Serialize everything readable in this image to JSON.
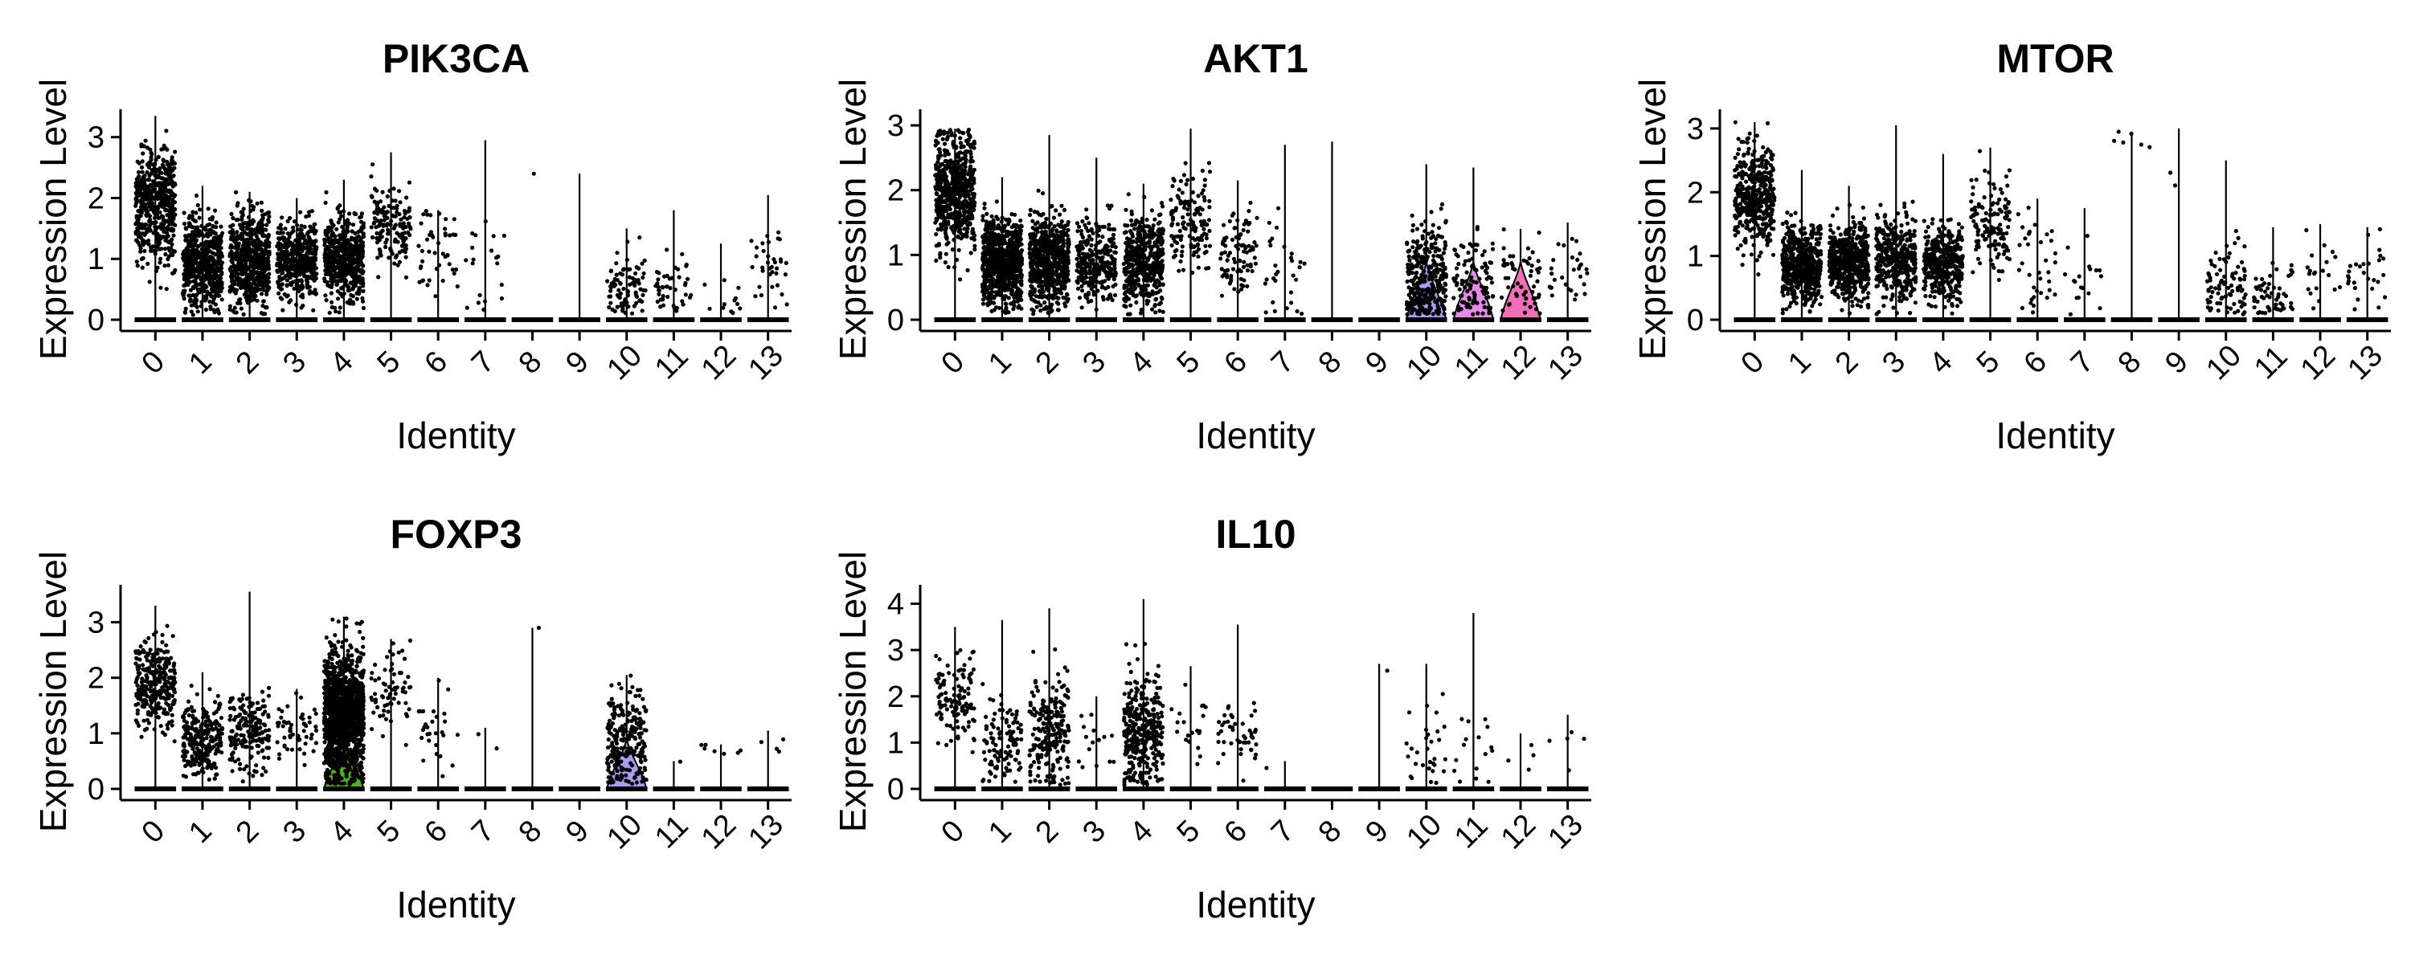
{
  "chart_data": [
    {
      "type": "violin",
      "title": "PIK3CA",
      "xlabel": "Identity",
      "ylabel": "Expression Level",
      "categories": [
        "0",
        "1",
        "2",
        "3",
        "4",
        "5",
        "6",
        "7",
        "8",
        "9",
        "10",
        "11",
        "12",
        "13"
      ],
      "ylim": [
        0,
        3.3
      ],
      "yticks": [
        0,
        1,
        2,
        3
      ],
      "legend": "none",
      "series": [
        {
          "center": 1.9,
          "spread": 0.45,
          "n": 520,
          "max": 3.35,
          "violin_fill": ""
        },
        {
          "center": 0.9,
          "spread": 0.35,
          "n": 560,
          "max": 2.2,
          "violin_fill": ""
        },
        {
          "center": 1.0,
          "spread": 0.4,
          "n": 600,
          "max": 2.1,
          "violin_fill": ""
        },
        {
          "center": 1.0,
          "spread": 0.3,
          "n": 420,
          "max": 2.0,
          "violin_fill": ""
        },
        {
          "center": 1.0,
          "spread": 0.35,
          "n": 520,
          "max": 2.3,
          "violin_fill": ""
        },
        {
          "center": 1.5,
          "spread": 0.35,
          "n": 150,
          "max": 2.75,
          "violin_fill": ""
        },
        {
          "center": 1.1,
          "spread": 0.35,
          "n": 45,
          "max": 1.8,
          "violin_fill": ""
        },
        {
          "center": 0.8,
          "spread": 0.5,
          "n": 20,
          "max": 2.95,
          "violin_fill": ""
        },
        {
          "center": 2.4,
          "spread": 0.0,
          "n": 1,
          "max": 0.0,
          "violin_fill": ""
        },
        {
          "center": 0.0,
          "spread": 0.0,
          "n": 0,
          "max": 2.4,
          "violin_fill": ""
        },
        {
          "center": 0.5,
          "spread": 0.3,
          "n": 90,
          "max": 1.5,
          "violin_fill": ""
        },
        {
          "center": 0.5,
          "spread": 0.3,
          "n": 45,
          "max": 1.8,
          "violin_fill": ""
        },
        {
          "center": 0.5,
          "spread": 0.3,
          "n": 12,
          "max": 1.25,
          "violin_fill": ""
        },
        {
          "center": 0.8,
          "spread": 0.4,
          "n": 35,
          "max": 2.05,
          "violin_fill": ""
        }
      ]
    },
    {
      "type": "violin",
      "title": "AKT1",
      "xlabel": "Identity",
      "ylabel": "Expression Level",
      "categories": [
        "0",
        "1",
        "2",
        "3",
        "4",
        "5",
        "6",
        "7",
        "8",
        "9",
        "10",
        "11",
        "12",
        "13"
      ],
      "ylim": [
        0,
        3.1
      ],
      "yticks": [
        0,
        1,
        2,
        3
      ],
      "legend": "none",
      "series": [
        {
          "center": 2.0,
          "spread": 0.45,
          "n": 620,
          "max": 2.95,
          "violin_fill": ""
        },
        {
          "center": 0.9,
          "spread": 0.35,
          "n": 760,
          "max": 2.2,
          "violin_fill": ""
        },
        {
          "center": 0.9,
          "spread": 0.35,
          "n": 650,
          "max": 2.85,
          "violin_fill": ""
        },
        {
          "center": 0.9,
          "spread": 0.3,
          "n": 300,
          "max": 2.5,
          "violin_fill": ""
        },
        {
          "center": 0.9,
          "spread": 0.35,
          "n": 450,
          "max": 2.1,
          "violin_fill": ""
        },
        {
          "center": 1.5,
          "spread": 0.35,
          "n": 140,
          "max": 2.95,
          "violin_fill": ""
        },
        {
          "center": 1.0,
          "spread": 0.35,
          "n": 90,
          "max": 2.15,
          "violin_fill": ""
        },
        {
          "center": 0.9,
          "spread": 0.5,
          "n": 30,
          "max": 2.7,
          "violin_fill": ""
        },
        {
          "center": 0.0,
          "spread": 0.0,
          "n": 0,
          "max": 2.75,
          "violin_fill": ""
        },
        {
          "center": 0.0,
          "spread": 0.0,
          "n": 0,
          "max": 0.0,
          "violin_fill": ""
        },
        {
          "center": 0.6,
          "spread": 0.4,
          "n": 320,
          "max": 2.4,
          "violin_fill": "#a99bf0"
        },
        {
          "center": 0.5,
          "spread": 0.35,
          "n": 110,
          "max": 2.35,
          "violin_fill": "#e58ae8"
        },
        {
          "center": 0.6,
          "spread": 0.3,
          "n": 55,
          "max": 1.4,
          "violin_fill": "#f06fb8"
        },
        {
          "center": 0.8,
          "spread": 0.3,
          "n": 30,
          "max": 1.5,
          "violin_fill": ""
        }
      ]
    },
    {
      "type": "violin",
      "title": "MTOR",
      "xlabel": "Identity",
      "ylabel": "Expression Level",
      "categories": [
        "0",
        "1",
        "2",
        "3",
        "4",
        "5",
        "6",
        "7",
        "8",
        "9",
        "10",
        "11",
        "12",
        "13"
      ],
      "ylim": [
        0,
        3.15
      ],
      "yticks": [
        0,
        1,
        2,
        3
      ],
      "legend": "none",
      "series": [
        {
          "center": 1.85,
          "spread": 0.4,
          "n": 420,
          "max": 3.1,
          "violin_fill": ""
        },
        {
          "center": 0.85,
          "spread": 0.3,
          "n": 520,
          "max": 2.35,
          "violin_fill": ""
        },
        {
          "center": 0.9,
          "spread": 0.3,
          "n": 600,
          "max": 2.1,
          "violin_fill": ""
        },
        {
          "center": 0.95,
          "spread": 0.35,
          "n": 380,
          "max": 3.05,
          "violin_fill": ""
        },
        {
          "center": 0.9,
          "spread": 0.3,
          "n": 380,
          "max": 2.6,
          "violin_fill": ""
        },
        {
          "center": 1.5,
          "spread": 0.35,
          "n": 140,
          "max": 2.7,
          "violin_fill": ""
        },
        {
          "center": 1.0,
          "spread": 0.4,
          "n": 35,
          "max": 1.9,
          "violin_fill": ""
        },
        {
          "center": 0.8,
          "spread": 0.4,
          "n": 18,
          "max": 1.75,
          "violin_fill": ""
        },
        {
          "center": 2.8,
          "spread": 0.1,
          "n": 6,
          "max": 2.95,
          "violin_fill": ""
        },
        {
          "center": 2.2,
          "spread": 0.1,
          "n": 2,
          "max": 3.0,
          "violin_fill": ""
        },
        {
          "center": 0.5,
          "spread": 0.3,
          "n": 85,
          "max": 2.5,
          "violin_fill": ""
        },
        {
          "center": 0.4,
          "spread": 0.25,
          "n": 55,
          "max": 1.45,
          "violin_fill": ""
        },
        {
          "center": 0.7,
          "spread": 0.3,
          "n": 20,
          "max": 1.5,
          "violin_fill": ""
        },
        {
          "center": 0.7,
          "spread": 0.3,
          "n": 28,
          "max": 1.45,
          "violin_fill": ""
        }
      ]
    },
    {
      "type": "violin",
      "title": "FOXP3",
      "xlabel": "Identity",
      "ylabel": "Expression Level",
      "categories": [
        "0",
        "1",
        "2",
        "3",
        "4",
        "5",
        "6",
        "7",
        "8",
        "9",
        "10",
        "11",
        "12",
        "13"
      ],
      "ylim": [
        0,
        3.5
      ],
      "yticks": [
        0,
        1,
        2,
        3
      ],
      "legend": "none",
      "series": [
        {
          "center": 1.85,
          "spread": 0.4,
          "n": 300,
          "max": 3.3,
          "violin_fill": ""
        },
        {
          "center": 0.85,
          "spread": 0.35,
          "n": 260,
          "max": 2.1,
          "violin_fill": ""
        },
        {
          "center": 1.0,
          "spread": 0.35,
          "n": 180,
          "max": 3.55,
          "violin_fill": ""
        },
        {
          "center": 1.0,
          "spread": 0.3,
          "n": 55,
          "max": 1.8,
          "violin_fill": ""
        },
        {
          "center": 1.3,
          "spread": 0.55,
          "n": 1300,
          "max": 3.1,
          "violin_fill": "#4fae24"
        },
        {
          "center": 1.8,
          "spread": 0.4,
          "n": 70,
          "max": 2.7,
          "violin_fill": ""
        },
        {
          "center": 1.1,
          "spread": 0.3,
          "n": 28,
          "max": 2.0,
          "violin_fill": ""
        },
        {
          "center": 0.9,
          "spread": 0.2,
          "n": 2,
          "max": 1.1,
          "violin_fill": ""
        },
        {
          "center": 2.9,
          "spread": 0.0,
          "n": 1,
          "max": 2.9,
          "violin_fill": ""
        },
        {
          "center": 0.0,
          "spread": 0.0,
          "n": 0,
          "max": 0.0,
          "violin_fill": ""
        },
        {
          "center": 0.9,
          "spread": 0.45,
          "n": 240,
          "max": 2.05,
          "violin_fill": "#a99bf0"
        },
        {
          "center": 0.5,
          "spread": 0.05,
          "n": 1,
          "max": 0.5,
          "violin_fill": ""
        },
        {
          "center": 0.7,
          "spread": 0.2,
          "n": 7,
          "max": 0.8,
          "violin_fill": ""
        },
        {
          "center": 0.8,
          "spread": 0.3,
          "n": 4,
          "max": 1.05,
          "violin_fill": ""
        }
      ]
    },
    {
      "type": "violin",
      "title": "IL10",
      "xlabel": "Identity",
      "ylabel": "Expression Level",
      "categories": [
        "0",
        "1",
        "2",
        "3",
        "4",
        "5",
        "6",
        "7",
        "8",
        "9",
        "10",
        "11",
        "12",
        "13"
      ],
      "ylim": [
        0,
        4.2
      ],
      "yticks": [
        0,
        1,
        2,
        3,
        4
      ],
      "legend": "none",
      "series": [
        {
          "center": 2.0,
          "spread": 0.45,
          "n": 120,
          "max": 3.5,
          "violin_fill": ""
        },
        {
          "center": 1.0,
          "spread": 0.45,
          "n": 110,
          "max": 3.65,
          "violin_fill": ""
        },
        {
          "center": 1.2,
          "spread": 0.6,
          "n": 220,
          "max": 3.9,
          "violin_fill": ""
        },
        {
          "center": 1.0,
          "spread": 0.4,
          "n": 15,
          "max": 2.0,
          "violin_fill": ""
        },
        {
          "center": 1.3,
          "spread": 0.65,
          "n": 330,
          "max": 4.1,
          "violin_fill": ""
        },
        {
          "center": 1.5,
          "spread": 0.5,
          "n": 20,
          "max": 2.65,
          "violin_fill": ""
        },
        {
          "center": 1.2,
          "spread": 0.5,
          "n": 45,
          "max": 3.55,
          "violin_fill": ""
        },
        {
          "center": 0.5,
          "spread": 0.05,
          "n": 1,
          "max": 0.6,
          "violin_fill": ""
        },
        {
          "center": 0.0,
          "spread": 0.0,
          "n": 0,
          "max": 0.0,
          "violin_fill": ""
        },
        {
          "center": 2.6,
          "spread": 0.05,
          "n": 1,
          "max": 2.7,
          "violin_fill": ""
        },
        {
          "center": 0.9,
          "spread": 0.6,
          "n": 30,
          "max": 2.7,
          "violin_fill": ""
        },
        {
          "center": 0.8,
          "spread": 0.5,
          "n": 16,
          "max": 3.8,
          "violin_fill": ""
        },
        {
          "center": 0.8,
          "spread": 0.3,
          "n": 4,
          "max": 1.2,
          "violin_fill": ""
        },
        {
          "center": 0.9,
          "spread": 0.5,
          "n": 5,
          "max": 1.6,
          "violin_fill": ""
        }
      ]
    }
  ]
}
